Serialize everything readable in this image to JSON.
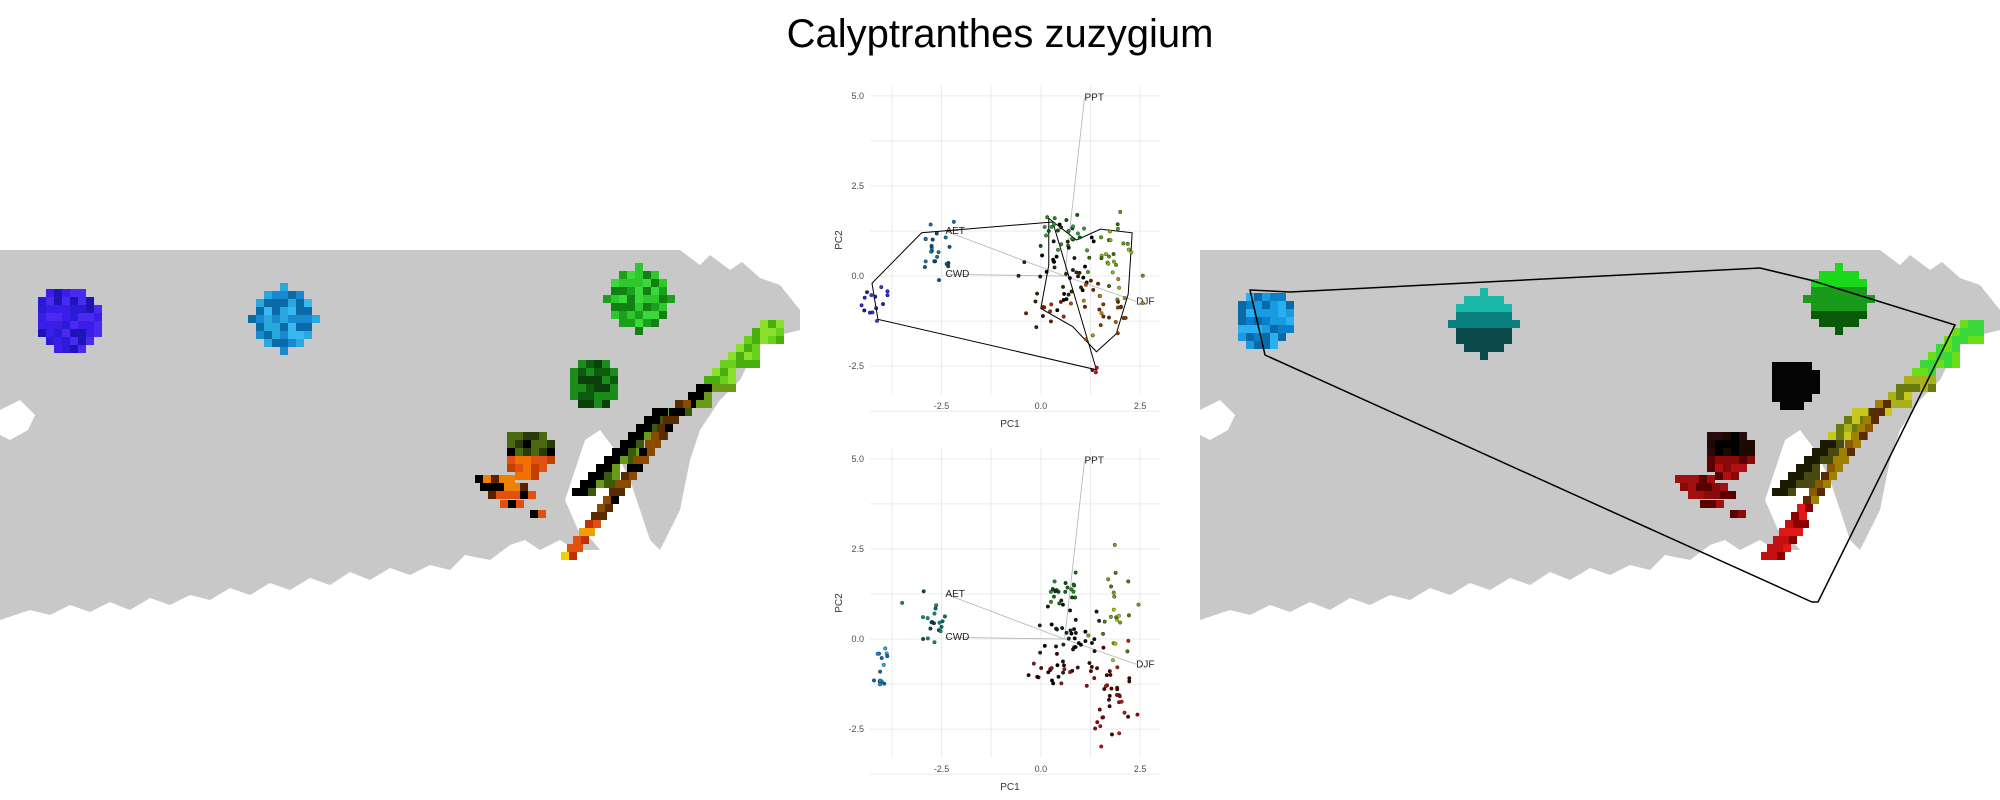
{
  "title": "Calyptranthes zuzygium",
  "colors": {
    "land": "#c8c8c8",
    "water": "#ffffff",
    "grid": "#ebebeb",
    "hull": "#000000",
    "loading": "#b3b3b3"
  },
  "pca": {
    "x_label": "PC1",
    "y_label": "PC2",
    "xlim": [
      -4.3,
      3.0
    ],
    "ylim": [
      -3.3,
      5.3
    ],
    "x_ticks": [
      "-2.5",
      "0.0",
      "2.5"
    ],
    "y_ticks": [
      "5.0",
      "2.5",
      "0.0",
      "-2.5"
    ]
  },
  "chart_data": [
    {
      "type": "scatter",
      "name": "pca-top",
      "xlabel": "PC1",
      "ylabel": "PC2",
      "xlim": [
        -4.3,
        3.0
      ],
      "ylim": [
        -3.3,
        5.3
      ],
      "grid": true,
      "loadings": [
        {
          "label": "PPT",
          "x": 1.1,
          "y": 4.95
        },
        {
          "label": "AET",
          "x": -2.4,
          "y": 1.25
        },
        {
          "label": "CWD",
          "x": -2.4,
          "y": 0.05
        },
        {
          "label": "DJF",
          "x": 2.4,
          "y": -0.7
        }
      ],
      "clusters": [
        {
          "cx": -4.2,
          "cy": -0.7,
          "sx": 0.18,
          "sy": 0.3,
          "n": 14,
          "colors": [
            "#1a1aa8",
            "#2a2ad0",
            "#3838c8"
          ]
        },
        {
          "cx": -2.6,
          "cy": 0.6,
          "sx": 0.2,
          "sy": 0.35,
          "n": 22,
          "colors": [
            "#0a5a8a",
            "#1673a8",
            "#0d4d70"
          ]
        },
        {
          "cx": 0.5,
          "cy": 1.2,
          "sx": 0.3,
          "sy": 0.3,
          "n": 22,
          "colors": [
            "#1a8c1a",
            "#2ea02e",
            "#0d5c0d"
          ]
        },
        {
          "cx": 0.6,
          "cy": 0.0,
          "sx": 0.45,
          "sy": 0.6,
          "n": 40,
          "colors": [
            "#000000",
            "#1a1a1a",
            "#2b2b00"
          ]
        },
        {
          "cx": 1.8,
          "cy": 0.5,
          "sx": 0.3,
          "sy": 0.6,
          "n": 28,
          "colors": [
            "#5a9a1a",
            "#8ab81a",
            "#3a6a10"
          ]
        },
        {
          "cx": 1.7,
          "cy": -0.9,
          "sx": 0.4,
          "sy": 0.45,
          "n": 26,
          "colors": [
            "#8a3a00",
            "#c05000",
            "#6a2a00",
            "#b88a00"
          ]
        },
        {
          "cx": 0.3,
          "cy": -0.9,
          "sx": 0.3,
          "sy": 0.2,
          "n": 10,
          "colors": [
            "#a03000",
            "#c84000",
            "#7a1a00"
          ]
        },
        {
          "cx": 1.4,
          "cy": -2.6,
          "sx": 0.05,
          "sy": 0.1,
          "n": 3,
          "colors": [
            "#c01010",
            "#8a0000"
          ]
        }
      ]
    },
    {
      "type": "scatter",
      "name": "pca-bottom",
      "xlabel": "PC1",
      "ylabel": "PC2",
      "xlim": [
        -4.3,
        3.0
      ],
      "ylim": [
        -3.3,
        5.3
      ],
      "grid": true,
      "loadings": [
        {
          "label": "PPT",
          "x": 1.1,
          "y": 4.95
        },
        {
          "label": "AET",
          "x": -2.4,
          "y": 1.25
        },
        {
          "label": "CWD",
          "x": -2.4,
          "y": 0.05
        },
        {
          "label": "DJF",
          "x": 2.4,
          "y": -0.7
        }
      ],
      "clusters": [
        {
          "cx": -4.0,
          "cy": -0.7,
          "sx": 0.1,
          "sy": 0.3,
          "n": 14,
          "colors": [
            "#1a8ad0",
            "#0a6aa8",
            "#29a8e0"
          ]
        },
        {
          "cx": -2.6,
          "cy": 0.6,
          "sx": 0.2,
          "sy": 0.35,
          "n": 20,
          "colors": [
            "#0a6a6a",
            "#108a80",
            "#0a4a4a"
          ]
        },
        {
          "cx": 0.5,
          "cy": 1.3,
          "sx": 0.3,
          "sy": 0.3,
          "n": 18,
          "colors": [
            "#0d4d0d",
            "#1a6a1a",
            "#2a8a2a"
          ]
        },
        {
          "cx": 0.6,
          "cy": 0.2,
          "sx": 0.4,
          "sy": 0.6,
          "n": 40,
          "colors": [
            "#000000",
            "#151515",
            "#1a2a1a"
          ]
        },
        {
          "cx": 1.8,
          "cy": 0.6,
          "sx": 0.25,
          "sy": 0.55,
          "n": 22,
          "colors": [
            "#7aa01a",
            "#a8c81a",
            "#4a7a10"
          ]
        },
        {
          "cx": 1.8,
          "cy": -1.3,
          "sx": 0.35,
          "sy": 0.6,
          "n": 34,
          "colors": [
            "#8a1010",
            "#5a0000",
            "#b02010",
            "#3a0a00"
          ]
        },
        {
          "cx": 0.4,
          "cy": -0.8,
          "sx": 0.35,
          "sy": 0.35,
          "n": 16,
          "colors": [
            "#5a0a0a",
            "#3a0000",
            "#8a1a1a"
          ]
        },
        {
          "cx": 1.5,
          "cy": -2.4,
          "sx": 0.05,
          "sy": 0.3,
          "n": 6,
          "colors": [
            "#8a0000",
            "#b01010"
          ]
        }
      ]
    }
  ]
}
